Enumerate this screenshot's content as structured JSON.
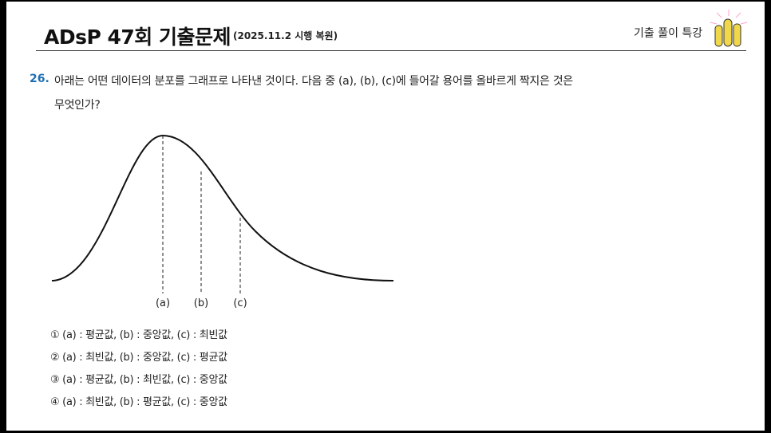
{
  "header": {
    "title": "ADsP 47회 기출문제",
    "subtitle": "(2025.11.2 시행 복원)",
    "brand": "기출 풀이 특강"
  },
  "question": {
    "number": "26.",
    "text_line1": "아래는 어떤 데이터의 분포를 그래프로 나타낸 것이다. 다음 중 (a), (b), (c)에 들어갈 용어를 올바르게 짝지은 것은",
    "text_line2": "무엇인가?"
  },
  "figure": {
    "labels": [
      "(a)",
      "(b)",
      "(c)"
    ]
  },
  "options": [
    "① (a) : 평균값, (b) : 중앙값, (c) : 최빈값",
    "② (a) : 최빈값, (b) : 중앙값, (c) : 평균값",
    "③ (a) : 평균값, (b) : 최빈값, (c) : 중앙값",
    "④ (a) : 최빈값, (b) : 평균값, (c) : 중앙값"
  ]
}
